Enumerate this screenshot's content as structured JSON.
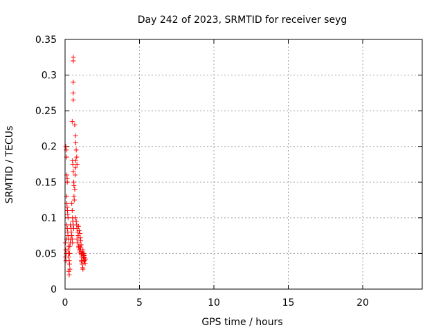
{
  "chart_data": {
    "type": "scatter",
    "title": "Day 242 of 2023, SRMTID for receiver seyg",
    "xlabel": "GPS time / hours",
    "ylabel": "SRMTID / TECUs",
    "xlim": [
      0,
      24
    ],
    "ylim": [
      0,
      0.35
    ],
    "xticks": [
      0,
      5,
      10,
      15,
      20
    ],
    "xtick_labels": [
      "0",
      "5",
      "10",
      "15",
      "20"
    ],
    "yticks": [
      0,
      0.05,
      0.1,
      0.15,
      0.2,
      0.25,
      0.3,
      0.35
    ],
    "ytick_labels": [
      "0",
      "0.05",
      "0.1",
      "0.15",
      "0.2",
      "0.25",
      "0.3",
      "0.35"
    ],
    "grid": true,
    "marker": "+",
    "marker_color": "#ff0000",
    "series": [
      {
        "name": "SRMTID",
        "points": [
          [
            0.02,
            0.065
          ],
          [
            0.03,
            0.045
          ],
          [
            0.05,
            0.055
          ],
          [
            0.06,
            0.04
          ],
          [
            0.08,
            0.05
          ],
          [
            0.1,
            0.07
          ],
          [
            0.05,
            0.2
          ],
          [
            0.08,
            0.195
          ],
          [
            0.1,
            0.185
          ],
          [
            0.12,
            0.16
          ],
          [
            0.14,
            0.155
          ],
          [
            0.15,
            0.15
          ],
          [
            0.1,
            0.13
          ],
          [
            0.12,
            0.12
          ],
          [
            0.14,
            0.115
          ],
          [
            0.16,
            0.11
          ],
          [
            0.18,
            0.105
          ],
          [
            0.2,
            0.1
          ],
          [
            0.12,
            0.09
          ],
          [
            0.15,
            0.085
          ],
          [
            0.18,
            0.08
          ],
          [
            0.2,
            0.075
          ],
          [
            0.22,
            0.07
          ],
          [
            0.25,
            0.06
          ],
          [
            0.2,
            0.055
          ],
          [
            0.22,
            0.05
          ],
          [
            0.25,
            0.045
          ],
          [
            0.28,
            0.04
          ],
          [
            0.3,
            0.035
          ],
          [
            0.32,
            0.028
          ],
          [
            0.25,
            0.025
          ],
          [
            0.28,
            0.02
          ],
          [
            0.3,
            0.05
          ],
          [
            0.32,
            0.06
          ],
          [
            0.35,
            0.065
          ],
          [
            0.38,
            0.07
          ],
          [
            0.35,
            0.09
          ],
          [
            0.4,
            0.085
          ],
          [
            0.42,
            0.08
          ],
          [
            0.45,
            0.075
          ],
          [
            0.48,
            0.07
          ],
          [
            0.5,
            0.065
          ],
          [
            0.45,
            0.12
          ],
          [
            0.48,
            0.11
          ],
          [
            0.5,
            0.1
          ],
          [
            0.52,
            0.095
          ],
          [
            0.55,
            0.09
          ],
          [
            0.58,
            0.085
          ],
          [
            0.48,
            0.235
          ],
          [
            0.5,
            0.18
          ],
          [
            0.52,
            0.175
          ],
          [
            0.55,
            0.165
          ],
          [
            0.58,
            0.15
          ],
          [
            0.6,
            0.145
          ],
          [
            0.55,
            0.325
          ],
          [
            0.55,
            0.32
          ],
          [
            0.55,
            0.29
          ],
          [
            0.55,
            0.275
          ],
          [
            0.55,
            0.265
          ],
          [
            0.6,
            0.13
          ],
          [
            0.62,
            0.125
          ],
          [
            0.65,
            0.14
          ],
          [
            0.68,
            0.16
          ],
          [
            0.7,
            0.17
          ],
          [
            0.72,
            0.18
          ],
          [
            0.65,
            0.23
          ],
          [
            0.7,
            0.215
          ],
          [
            0.72,
            0.205
          ],
          [
            0.75,
            0.195
          ],
          [
            0.78,
            0.185
          ],
          [
            0.8,
            0.175
          ],
          [
            0.7,
            0.1
          ],
          [
            0.75,
            0.095
          ],
          [
            0.78,
            0.09
          ],
          [
            0.8,
            0.085
          ],
          [
            0.85,
            0.08
          ],
          [
            0.88,
            0.075
          ],
          [
            0.8,
            0.07
          ],
          [
            0.85,
            0.065
          ],
          [
            0.9,
            0.06
          ],
          [
            0.92,
            0.058
          ],
          [
            0.95,
            0.055
          ],
          [
            0.98,
            0.052
          ],
          [
            0.9,
            0.088
          ],
          [
            0.95,
            0.082
          ],
          [
            1.0,
            0.078
          ],
          [
            1.02,
            0.072
          ],
          [
            1.05,
            0.068
          ],
          [
            1.08,
            0.062
          ],
          [
            1.0,
            0.06
          ],
          [
            1.02,
            0.058
          ],
          [
            1.05,
            0.055
          ],
          [
            1.08,
            0.05
          ],
          [
            1.1,
            0.048
          ],
          [
            1.12,
            0.045
          ],
          [
            1.1,
            0.04
          ],
          [
            1.12,
            0.038
          ],
          [
            1.15,
            0.035
          ],
          [
            1.18,
            0.03
          ],
          [
            1.2,
            0.028
          ],
          [
            1.22,
            0.042
          ],
          [
            1.15,
            0.05
          ],
          [
            1.18,
            0.052
          ],
          [
            1.2,
            0.055
          ],
          [
            1.22,
            0.048
          ],
          [
            1.25,
            0.045
          ],
          [
            1.28,
            0.04
          ],
          [
            1.25,
            0.05
          ],
          [
            1.28,
            0.047
          ],
          [
            1.3,
            0.044
          ],
          [
            1.32,
            0.04
          ],
          [
            1.35,
            0.036
          ],
          [
            1.38,
            0.042
          ]
        ]
      }
    ]
  }
}
